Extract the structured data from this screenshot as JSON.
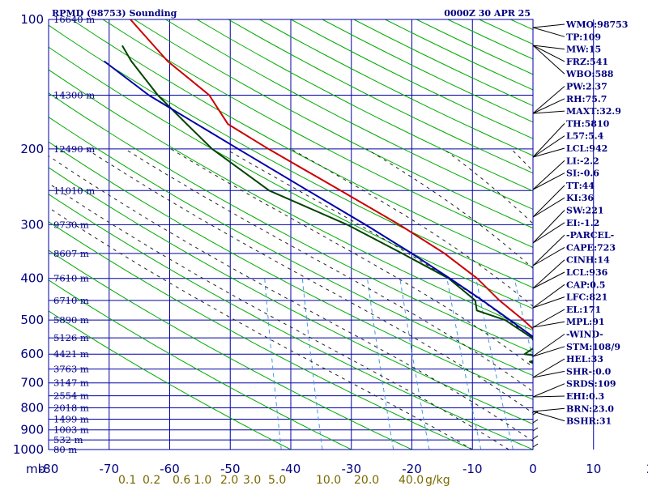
{
  "chart_data": {
    "type": "line",
    "title_left": "RPMD (98753) Sounding",
    "title_right": "0000Z 30 APR 25",
    "ylabel": "mb",
    "y_scale": "log-pressure",
    "ylim": [
      1000,
      100
    ],
    "xlim": [
      -80,
      0
    ],
    "pressure_ticks": [
      {
        "p": 100,
        "label": "100",
        "hgt": "16640 m"
      },
      {
        "p": 150,
        "label": "",
        "hgt": "14300 m"
      },
      {
        "p": 200,
        "label": "200",
        "hgt": "12490 m"
      },
      {
        "p": 250,
        "label": "",
        "hgt": "11010 m"
      },
      {
        "p": 300,
        "label": "300",
        "hgt": "9730 m"
      },
      {
        "p": 350,
        "label": "",
        "hgt": "8607 m"
      },
      {
        "p": 400,
        "label": "400",
        "hgt": "7610 m"
      },
      {
        "p": 450,
        "label": "",
        "hgt": "6710 m"
      },
      {
        "p": 500,
        "label": "500",
        "hgt": "5890 m"
      },
      {
        "p": 550,
        "label": "",
        "hgt": "5126 m"
      },
      {
        "p": 600,
        "label": "600",
        "hgt": "4421 m"
      },
      {
        "p": 650,
        "label": "",
        "hgt": "3763 m"
      },
      {
        "p": 700,
        "label": "700",
        "hgt": "3147 m"
      },
      {
        "p": 750,
        "label": "",
        "hgt": "2554 m"
      },
      {
        "p": 800,
        "label": "800",
        "hgt": "2018 m"
      },
      {
        "p": 850,
        "label": "",
        "hgt": "1499 m"
      },
      {
        "p": 900,
        "label": "900",
        "hgt": "1003 m"
      },
      {
        "p": 950,
        "label": "",
        "hgt": "532 m"
      },
      {
        "p": 1000,
        "label": "1000",
        "hgt": "80 m"
      }
    ],
    "temp_ticks": [
      -80,
      -70,
      -60,
      -50,
      -40,
      -30,
      -20,
      -10,
      0,
      10,
      20,
      30,
      40
    ],
    "temp_tick_labels": [
      "-80",
      "-70",
      "-60",
      "-50",
      "-40",
      "-30",
      "-20",
      "-10",
      "0",
      "10",
      "20",
      "30",
      "40"
    ],
    "mixing_ratio_labels": [
      "0.1",
      "0.2",
      "0.6",
      "1.0",
      "2.0",
      "3.0",
      "5.0",
      "10.0",
      "20.0",
      "40.0",
      "g/kg"
    ],
    "mixing_ratio_values": [
      0.1,
      0.2,
      0.6,
      1.0,
      2.0,
      3.0,
      5.0,
      10.0,
      20.0,
      40.0
    ],
    "series": [
      {
        "name": "temperature",
        "color": "#cc0000",
        "points": [
          [
            1000,
            27.5
          ],
          [
            975,
            24.6
          ],
          [
            950,
            23.0
          ],
          [
            925,
            21.4
          ],
          [
            900,
            19.8
          ],
          [
            850,
            16.8
          ],
          [
            800,
            13.6
          ],
          [
            750,
            10.4
          ],
          [
            700,
            7.8
          ],
          [
            650,
            4.6
          ],
          [
            600,
            1.2
          ],
          [
            550,
            -2.0
          ],
          [
            500,
            -5.8
          ],
          [
            450,
            -10.4
          ],
          [
            400,
            -14.8
          ],
          [
            350,
            -21.0
          ],
          [
            300,
            -29.4
          ],
          [
            250,
            -40.2
          ],
          [
            200,
            -53.5
          ],
          [
            175,
            -61.0
          ],
          [
            150,
            -65.0
          ],
          [
            125,
            -73.0
          ],
          [
            100,
            -80.5
          ]
        ]
      },
      {
        "name": "dewpoint",
        "color": "#004400",
        "points": [
          [
            1000,
            23.4
          ],
          [
            975,
            22.6
          ],
          [
            950,
            21.4
          ],
          [
            925,
            20.0
          ],
          [
            900,
            18.5
          ],
          [
            850,
            15.0
          ],
          [
            800,
            11.2
          ],
          [
            750,
            6.6
          ],
          [
            700,
            3.0
          ],
          [
            675,
            0.5
          ],
          [
            650,
            -0.2
          ],
          [
            625,
            -3.4
          ],
          [
            610,
            -0.6
          ],
          [
            600,
            -4.5
          ],
          [
            575,
            -2.8
          ],
          [
            550,
            -3.8
          ],
          [
            500,
            -8.8
          ],
          [
            475,
            -13.8
          ],
          [
            450,
            -14.4
          ],
          [
            400,
            -19.5
          ],
          [
            350,
            -28.0
          ],
          [
            300,
            -38.0
          ],
          [
            250,
            -52.0
          ],
          [
            200,
            -62.8
          ],
          [
            175,
            -67.8
          ],
          [
            150,
            -73.5
          ],
          [
            125,
            -79.0
          ],
          [
            115,
            -81.0
          ]
        ]
      },
      {
        "name": "parcel",
        "color": "#0000aa",
        "points": [
          [
            1000,
            27.5
          ],
          [
            950,
            22.2
          ],
          [
            936,
            21.2
          ],
          [
            900,
            19.6
          ],
          [
            850,
            17.0
          ],
          [
            800,
            14.2
          ],
          [
            750,
            11.2
          ],
          [
            700,
            8.0
          ],
          [
            650,
            4.4
          ],
          [
            600,
            0.6
          ],
          [
            550,
            -3.4
          ],
          [
            500,
            -8.0
          ],
          [
            450,
            -13.2
          ],
          [
            400,
            -19.3
          ],
          [
            350,
            -26.4
          ],
          [
            300,
            -35.0
          ],
          [
            250,
            -45.6
          ],
          [
            200,
            -58.5
          ],
          [
            171,
            -67.5
          ],
          [
            150,
            -75.0
          ],
          [
            125,
            -83.5
          ]
        ]
      }
    ]
  },
  "side_panel": {
    "indices": [
      "WMO:98753",
      "TP:109",
      "MW:15",
      "FRZ:541",
      "WBO:588",
      "PW:2.37",
      "RH:75.7",
      "MAXT:32.9",
      "TH:5810",
      "L57:5.4",
      "LCL:942",
      "LI:-2.2",
      "SI:-0.6",
      "TT:44",
      "KI:36",
      "SW:221",
      "EI:-1.2",
      "-PARCEL-",
      "CAPE:723",
      "CINH:14",
      "LCL:936",
      "CAP:0.5",
      "LFC:821",
      "EL:171",
      "MPL:91",
      "-WIND-",
      "STM:108/9",
      "HEL:33",
      "SHR-:0.0",
      "SRDS:109",
      "EHI:0.3",
      "BRN:23.0",
      "BSHR:31"
    ]
  },
  "colors": {
    "grid": "#0000aa",
    "dry_adiabat": "#00aa00",
    "moist_adiabat": "#222222",
    "mixing_ratio": "#4499dd",
    "temperature": "#cc0000",
    "dewpoint": "#004400",
    "parcel": "#0000aa",
    "text": "#000080",
    "mixing_label": "#7a6a00"
  }
}
